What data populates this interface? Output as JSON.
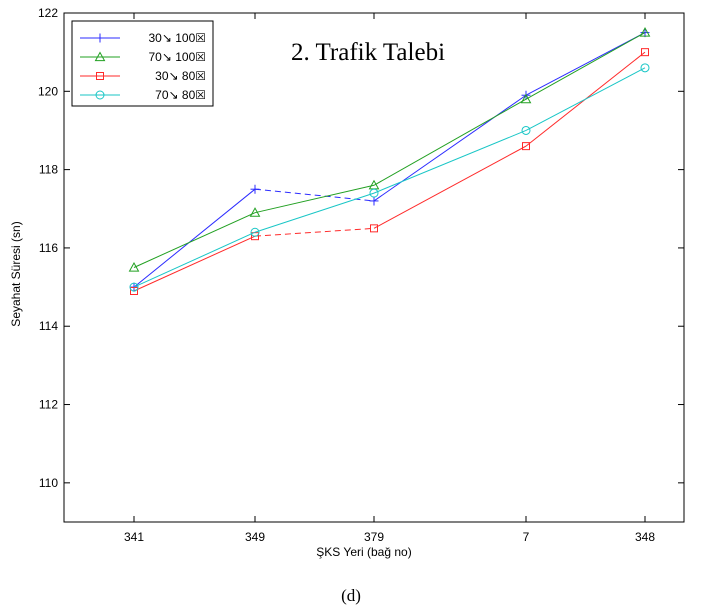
{
  "chart_data": {
    "type": "line",
    "title": "2. Trafik Talebi",
    "xlabel": "ŞKS Yeri (bağ no)",
    "ylabel": "Seyahat Süresi (sn)",
    "categories": [
      "341",
      "349",
      "379",
      "7",
      "348"
    ],
    "ylim": [
      109,
      122
    ],
    "yticks": [
      110,
      112,
      114,
      116,
      118,
      120,
      122
    ],
    "legend_position": "top-left",
    "grid": false,
    "series": [
      {
        "name": "30↘ 100☒",
        "color": "#2b2bff",
        "marker": "plus",
        "dash": "6,4",
        "values": [
          115.0,
          117.5,
          117.2,
          119.9,
          121.5
        ]
      },
      {
        "name": "70↘ 100☒",
        "color": "#22a022",
        "marker": "triangle",
        "dash": "",
        "values": [
          115.5,
          116.9,
          117.6,
          119.8,
          121.5
        ]
      },
      {
        "name": "30↘ 80☒",
        "color": "#ff2a2a",
        "marker": "square",
        "dash": "6,4",
        "values": [
          114.9,
          116.3,
          116.5,
          118.6,
          121.0
        ]
      },
      {
        "name": "70↘ 80☒",
        "color": "#19c6c6",
        "marker": "circle",
        "dash": "",
        "values": [
          115.0,
          116.4,
          117.4,
          119.0,
          120.6
        ]
      }
    ]
  },
  "caption": "(d)"
}
